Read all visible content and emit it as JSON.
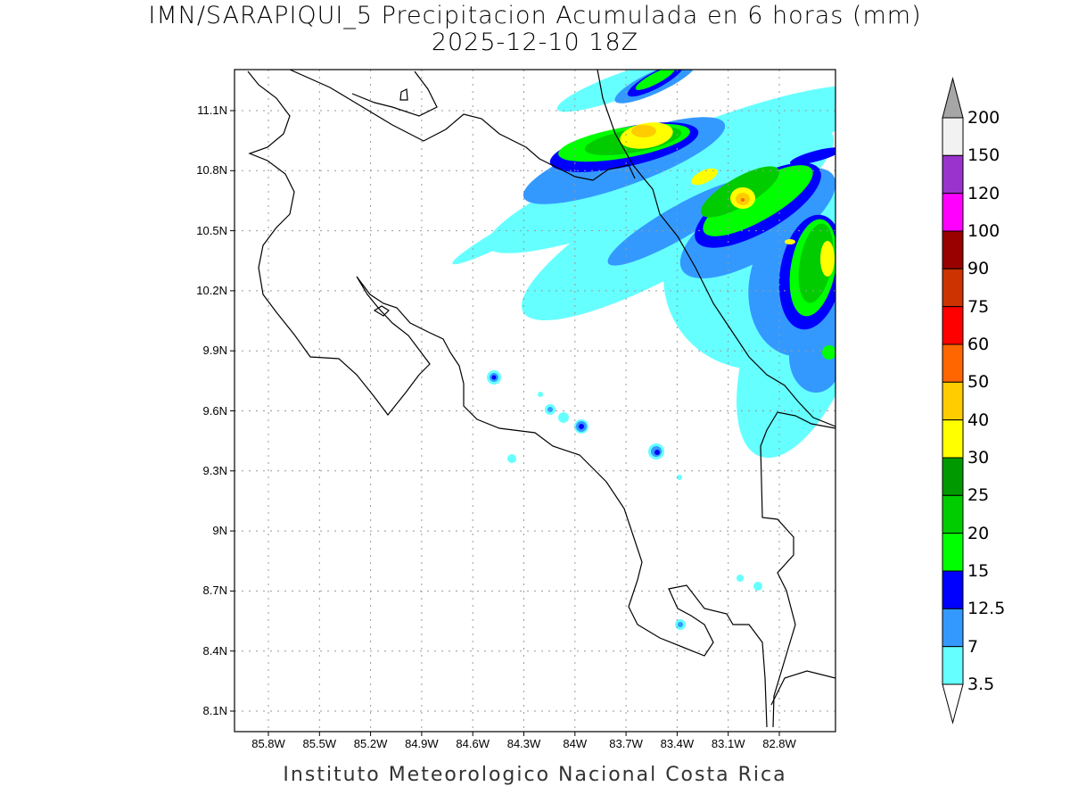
{
  "title": {
    "line1": "IMN/SARAPIQUI_5 Precipitacion Acumulada en 6 horas (mm)",
    "line2": "2025-12-10 18Z"
  },
  "footer": "Instituto Meteorologico Nacional Costa Rica",
  "axes": {
    "lat_labels": [
      "11.1N",
      "10.8N",
      "10.5N",
      "10.2N",
      "9.9N",
      "9.6N",
      "9.3N",
      "9N",
      "8.7N",
      "8.4N",
      "8.1N"
    ],
    "lon_labels": [
      "85.8W",
      "85.5W",
      "85.2W",
      "84.9W",
      "84.6W",
      "84.3W",
      "84W",
      "83.7W",
      "83.4W",
      "83.1W",
      "82.8W"
    ]
  },
  "colorbar": {
    "levels": [
      "200",
      "150",
      "120",
      "100",
      "90",
      "75",
      "60",
      "50",
      "40",
      "30",
      "25",
      "20",
      "15",
      "12.5",
      "7",
      "3.5"
    ],
    "colors": [
      "#f2f2f2",
      "#9933cc",
      "#ff00ff",
      "#990000",
      "#cc3300",
      "#ff0000",
      "#ff6600",
      "#ffcc00",
      "#ffff00",
      "#009900",
      "#00cc00",
      "#00ff00",
      "#0000ff",
      "#3399ff",
      "#66ffff"
    ],
    "over_color": "#a6a6a6",
    "under_color": "#ffffff"
  }
}
